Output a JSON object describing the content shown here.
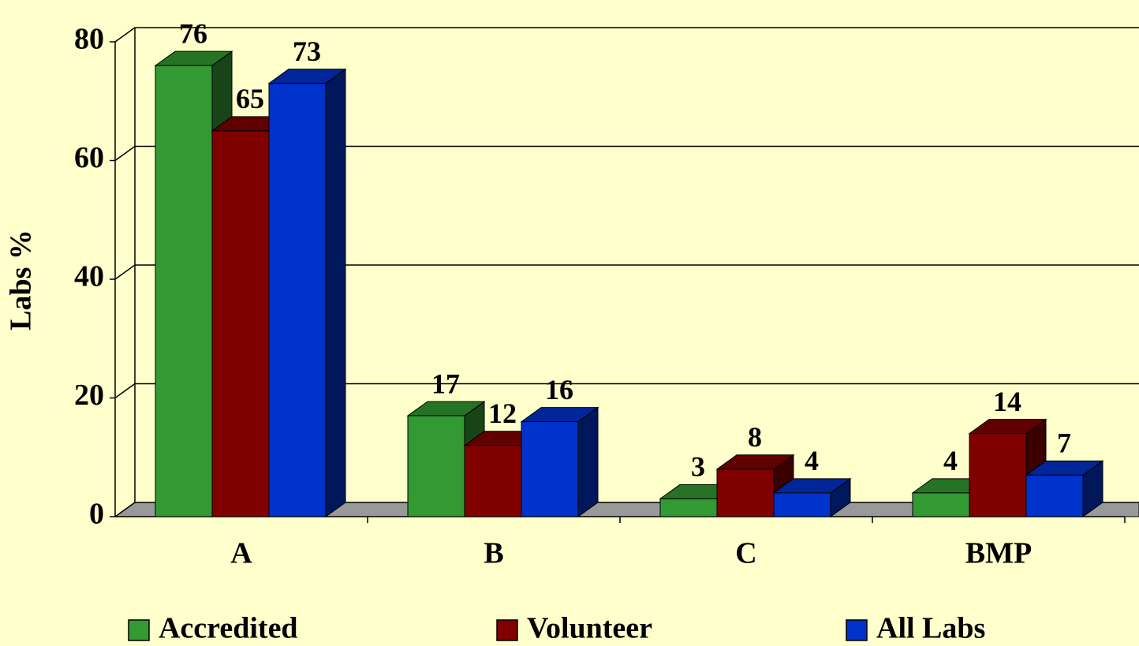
{
  "chart_data": {
    "type": "bar3d",
    "ylabel": "Labs %",
    "categories": [
      "A",
      "B",
      "C",
      "BMP"
    ],
    "series": [
      {
        "name": "Accredited",
        "color": "#339933",
        "values": [
          76,
          17,
          3,
          4
        ]
      },
      {
        "name": "Volunteer",
        "color": "#800000",
        "values": [
          65,
          12,
          8,
          14
        ]
      },
      {
        "name": "All Labs",
        "color": "#0033cc",
        "values": [
          73,
          16,
          4,
          7
        ]
      }
    ],
    "ylim": [
      0,
      80
    ],
    "yticks": [
      0,
      20,
      40,
      60,
      80
    ],
    "grid": true,
    "legend": "bottom"
  }
}
